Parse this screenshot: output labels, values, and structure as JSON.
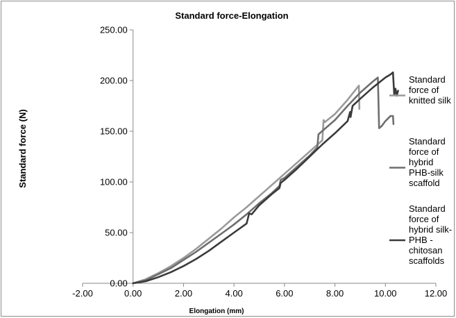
{
  "chart_data": {
    "type": "line",
    "title": "Standard force-Elongation",
    "xlabel": "Elongation (mm)",
    "ylabel": "Standard force (N)",
    "xlim": [
      -2,
      12
    ],
    "ylim": [
      0,
      250
    ],
    "x_ticks": [
      "-2.00",
      "0.00",
      "2.00",
      "4.00",
      "6.00",
      "8.00",
      "10.00",
      "12.00"
    ],
    "y_ticks": [
      "0.00",
      "50.00",
      "100.00",
      "150.00",
      "200.00",
      "250.00"
    ],
    "grid": false,
    "legend_position": "right",
    "series": [
      {
        "name": "Standard force of knitted silk",
        "color": "#9a9a9a",
        "x": [
          0,
          0.5,
          1.0,
          1.5,
          2.0,
          2.5,
          3.0,
          3.5,
          4.0,
          4.5,
          5.0,
          5.5,
          6.0,
          6.5,
          7.0,
          7.5,
          7.55,
          7.6,
          8.0,
          8.5,
          8.95,
          8.97
        ],
        "y": [
          0,
          4,
          10,
          17,
          25,
          34,
          44,
          54,
          65,
          75,
          86,
          97,
          108,
          119,
          130,
          141,
          161,
          159,
          167,
          181,
          195,
          172
        ]
      },
      {
        "name": "Standard force of hybrid PHB-silk scaffold",
        "color": "#6e6e6e",
        "x": [
          0,
          0.5,
          1.0,
          1.5,
          2.0,
          2.5,
          3.0,
          3.5,
          4.0,
          4.5,
          5.0,
          5.5,
          5.8,
          5.85,
          6.0,
          6.5,
          7.0,
          7.3,
          7.35,
          8.0,
          8.5,
          9.0,
          9.5,
          9.7,
          9.72,
          9.75,
          9.85,
          10.0,
          10.2,
          10.3,
          10.32
        ],
        "y": [
          0,
          3,
          9,
          15,
          23,
          31,
          40,
          49,
          58,
          68,
          79,
          89,
          96,
          102,
          104,
          115,
          126,
          134,
          147,
          161,
          175,
          188,
          199,
          203,
          185,
          153,
          155,
          160,
          165,
          165,
          157
        ]
      },
      {
        "name": "Standard force of hybrid silk-PHB -chitosan scaffolds",
        "color": "#3a3a3a",
        "x": [
          0,
          0.5,
          1.0,
          1.5,
          2.0,
          2.5,
          3.0,
          3.5,
          4.0,
          4.5,
          4.6,
          4.7,
          5.0,
          5.5,
          5.8,
          5.85,
          6.0,
          6.5,
          7.0,
          7.5,
          8.0,
          8.5,
          8.6,
          8.62,
          8.7,
          9.0,
          9.5,
          10.0,
          10.2,
          10.3,
          10.35,
          10.4,
          10.45,
          10.5
        ],
        "y": [
          0,
          2,
          6,
          11,
          17,
          24,
          32,
          41,
          50,
          59,
          69,
          68,
          77,
          88,
          94,
          99,
          102,
          113,
          125,
          137,
          148,
          160,
          169,
          164,
          175,
          182,
          193,
          203,
          206,
          208,
          186,
          192,
          185,
          190
        ]
      }
    ],
    "legend_lines": [
      [
        "Standard",
        "force of",
        "knitted silk"
      ],
      [
        "Standard",
        "force of",
        "hybrid",
        "PHB-silk",
        "scaffold"
      ],
      [
        "Standard",
        "force of",
        "hybrid silk-",
        "PHB -",
        "chitosan",
        "scaffolds"
      ]
    ]
  }
}
